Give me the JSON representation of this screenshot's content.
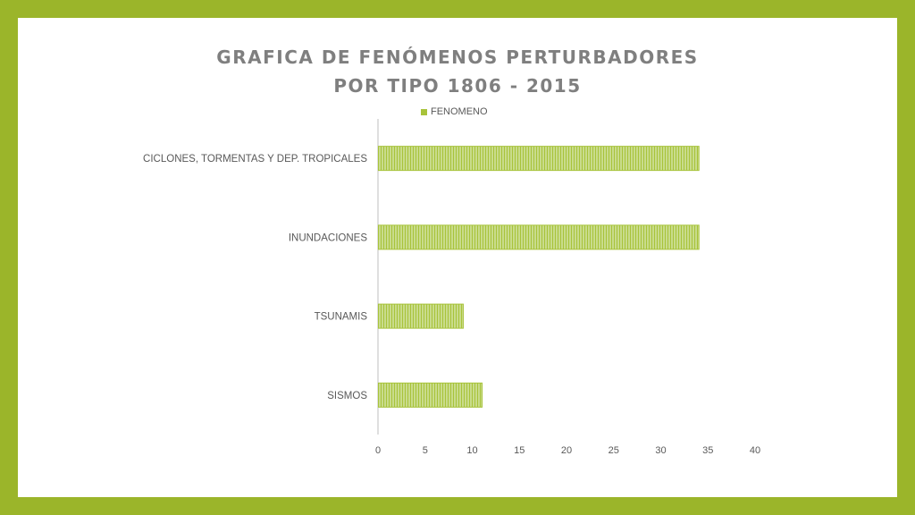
{
  "colors": {
    "frame": "#9bb52a",
    "bar_fill": "#c9dc8c",
    "bar_stripe": "#a8c33a",
    "axis": "#bfbfbf",
    "text": "#595959",
    "title": "#7f7f7f"
  },
  "chart_data": {
    "type": "bar",
    "orientation": "horizontal",
    "title_lines": [
      "GRAFICA DE FENÓMENOS PERTURBADORES",
      "POR TIPO 1806 - 2015"
    ],
    "categories": [
      "CICLONES, TORMENTAS Y DEP. TROPICALES",
      "INUNDACIONES",
      "TSUNAMIS",
      "SISMOS"
    ],
    "series": [
      {
        "name": "FENOMENO",
        "values": [
          34,
          34,
          9,
          11
        ]
      }
    ],
    "xlim": [
      0,
      40
    ],
    "xticks": [
      0,
      5,
      10,
      15,
      20,
      25,
      30,
      35,
      40
    ],
    "legend_position": "top",
    "grid": false,
    "bar_pattern": "vertical-stripes"
  }
}
